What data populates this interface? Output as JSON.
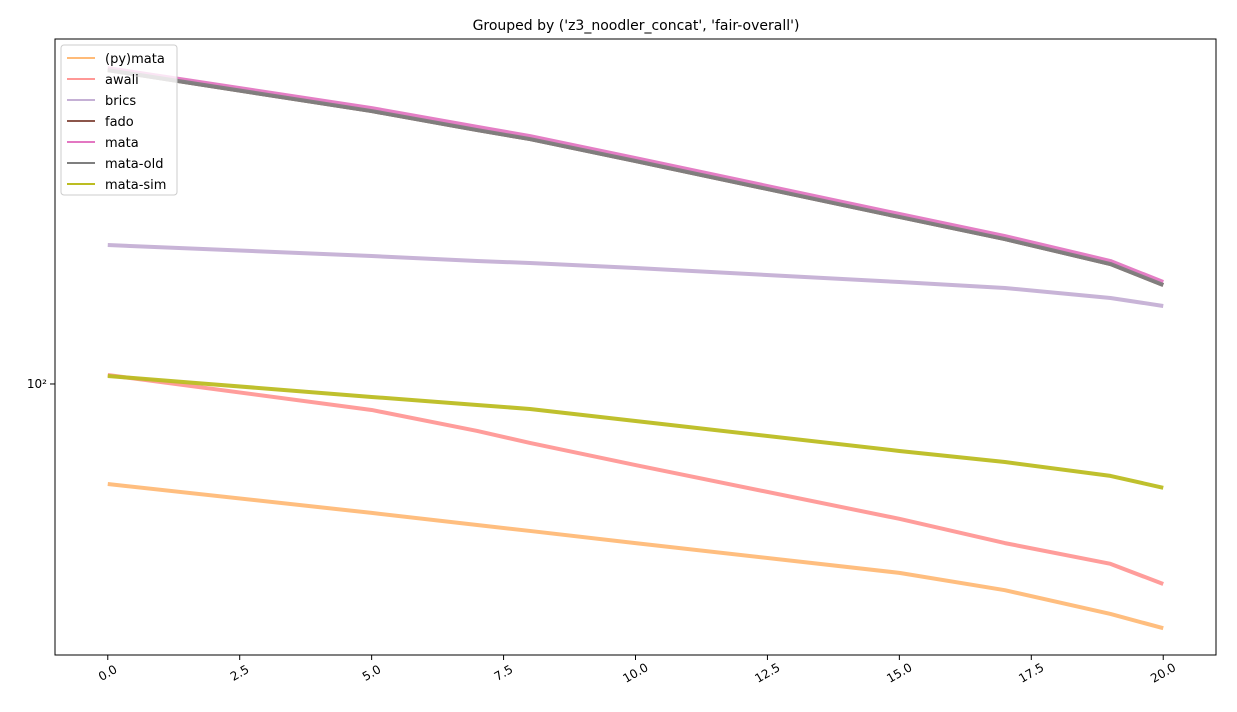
{
  "chart_data": {
    "type": "line",
    "title": "Grouped by ('z3_noodler_concat', 'fair-overall')",
    "x": [
      0,
      5,
      7,
      8,
      10,
      15,
      17,
      19,
      20
    ],
    "series": [
      {
        "name": "(py)mata",
        "color": "#ffbb78",
        "values": [
          56.2,
          47.6,
          44.4,
          42.9,
          40.0,
          33.7,
          30.5,
          26.6,
          24.5
        ]
      },
      {
        "name": "awali",
        "color": "#ff9896",
        "values": [
          105.3,
          86.1,
          76.3,
          71.2,
          62.7,
          46.0,
          40.0,
          35.5,
          31.6
        ]
      },
      {
        "name": "brics",
        "color": "#c5b0d5",
        "values": [
          222.6,
          208.9,
          203.0,
          200.7,
          195.0,
          179.9,
          173.8,
          164.1,
          156.7
        ]
      },
      {
        "name": "fado",
        "color": "#8c564b",
        "values": [
          609.5,
          481.4,
          431.5,
          409.7,
          361.1,
          261.6,
          230.4,
          199.5,
          176.8
        ]
      },
      {
        "name": "mata",
        "color": "#e377c2",
        "values": [
          616.6,
          489.8,
          439.5,
          416.9,
          367.3,
          266.1,
          234.4,
          203.0,
          179.9
        ]
      },
      {
        "name": "mata-old",
        "color": "#7f7f7f",
        "values": [
          609.5,
          481.4,
          431.5,
          409.7,
          361.1,
          261.6,
          230.4,
          199.5,
          176.8
        ]
      },
      {
        "name": "mata-sim",
        "color": "#bcbd22",
        "values": [
          104.7,
          92.8,
          88.6,
          86.6,
          80.8,
          68.0,
          63.8,
          58.9,
          55.0
        ]
      }
    ],
    "xlim": [
      -1,
      21
    ],
    "xticks": [
      {
        "value": 0,
        "label": "0.0"
      },
      {
        "value": 2.5,
        "label": "2.5"
      },
      {
        "value": 5,
        "label": "5.0"
      },
      {
        "value": 7.5,
        "label": "7.5"
      },
      {
        "value": 10,
        "label": "10.0"
      },
      {
        "value": 12.5,
        "label": "12.5"
      },
      {
        "value": 15,
        "label": "15.0"
      },
      {
        "value": 17.5,
        "label": "17.5"
      },
      {
        "value": 20,
        "label": "20.0"
      }
    ],
    "ylim": [
      21,
      729
    ],
    "yticks": [
      {
        "value": 100,
        "label": "10²"
      }
    ],
    "log_y": true,
    "legend": "upper-left"
  }
}
